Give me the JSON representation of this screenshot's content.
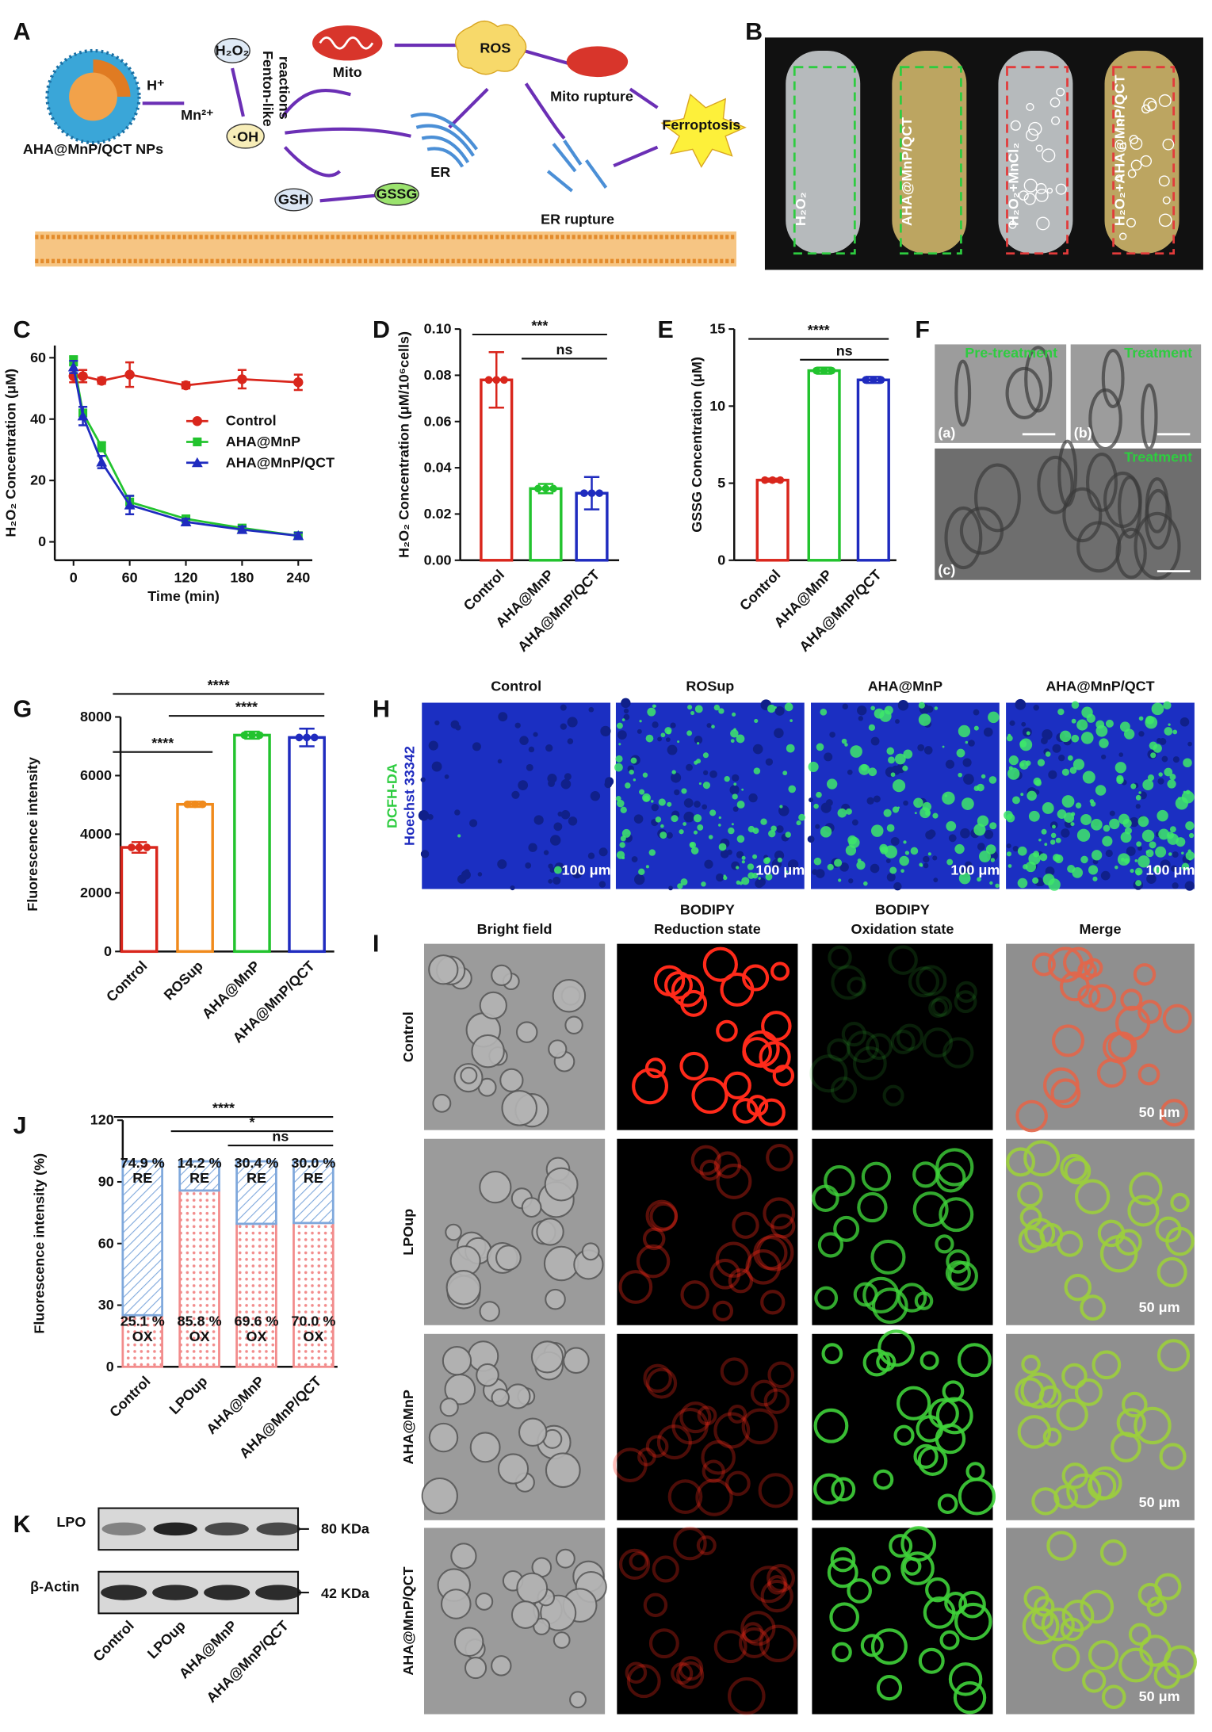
{
  "panel_labels": [
    "A",
    "B",
    "C",
    "D",
    "E",
    "F",
    "G",
    "H",
    "I",
    "J",
    "K"
  ],
  "diagram": {
    "nanoparticle": "AHA@MnP/QCT NPs",
    "proton": "H⁺",
    "manganese": "Mn²⁺",
    "peroxide": "H₂O₂",
    "reaction": [
      "Fenton-like",
      "reactions"
    ],
    "hydroxyl": "·OH",
    "mito": "Mito",
    "ros": "ROS",
    "mito_rupture": "Mito rupture",
    "er": "ER",
    "er_rupture": "ER rupture",
    "ferroptosis": "Ferroptosis",
    "gsh": "GSH",
    "gssg": "GSSG"
  },
  "tubes": [
    "H₂O₂",
    "AHA@MnP/QCT",
    "H₂O₂+MnCl₂",
    "H₂O₂+AHA@MnP/QCT"
  ],
  "tem": {
    "labels": [
      "Pre-treatment",
      "Treatment",
      "Treatment"
    ],
    "subpanels": [
      "(a)",
      "(b)",
      "(c)"
    ]
  },
  "ros_imaging": {
    "columns": [
      "Control",
      "ROSup",
      "AHA@MnP",
      "AHA@MnP/QCT"
    ],
    "stains": [
      "DCFH-DA",
      "Hoechst 33342"
    ],
    "scale": "100 μm"
  },
  "bodipy": {
    "columns": [
      [
        "Bright field"
      ],
      [
        "BODIPY",
        "Reduction state"
      ],
      [
        "BODIPY",
        "Oxidation state"
      ],
      [
        "Merge"
      ]
    ],
    "rows": [
      "Control",
      "LPOup",
      "AHA@MnP",
      "AHA@MnP/QCT"
    ],
    "scale": "50 μm"
  },
  "blot": {
    "proteins": [
      "LPO",
      "β-Actin"
    ],
    "sizes": [
      "80 KDa",
      "42 KDa"
    ],
    "lanes": [
      "Control",
      "LPOup",
      "AHA@MnP",
      "AHA@MnP/QCT"
    ]
  },
  "chart_data": [
    {
      "type": "line",
      "x_label": "Time (min)",
      "y_label": "H₂O₂ Concentration (μM)",
      "x": [
        0,
        10,
        30,
        60,
        120,
        180,
        240
      ],
      "xlim": [
        -20,
        255
      ],
      "xticks": [
        0,
        60,
        120,
        180,
        240
      ],
      "ylim": [
        -6,
        64
      ],
      "yticks": [
        0,
        20,
        40,
        60
      ],
      "legend": "right",
      "series": [
        {
          "name": "Control",
          "color": "#d9261c",
          "marker": "circle",
          "values": [
            54,
            54,
            52.5,
            54.5,
            51,
            53,
            52
          ],
          "errors": [
            2,
            2,
            1,
            4,
            1,
            3,
            2.5
          ]
        },
        {
          "name": "AHA@MnP",
          "color": "#22c32e",
          "marker": "square",
          "values": [
            59,
            42,
            31,
            13,
            7.5,
            4.5,
            2
          ],
          "errors": [
            1.5,
            2,
            1.5,
            2,
            1,
            1,
            1
          ]
        },
        {
          "name": "AHA@MnP/QCT",
          "color": "#1f2bbf",
          "marker": "triangle",
          "values": [
            57,
            41,
            26,
            12,
            6.5,
            4,
            2
          ],
          "errors": [
            2,
            3,
            2,
            3,
            1,
            1,
            1
          ]
        }
      ]
    },
    {
      "type": "bar",
      "y_label": "H₂O₂ Concentration (μM/10⁶cells)",
      "categories": [
        "Control",
        "AHA@MnP",
        "AHA@MnP/QCT"
      ],
      "values": [
        0.078,
        0.031,
        0.029
      ],
      "errors": [
        0.012,
        0.002,
        0.007
      ],
      "colors": [
        "#d9261c",
        "#22c32e",
        "#1f2bbf"
      ],
      "ylim": [
        0,
        0.1
      ],
      "yticks": [
        {
          "value": 0,
          "label": "0.00"
        },
        {
          "value": 0.02,
          "label": "0.02"
        },
        {
          "value": 0.04,
          "label": "0.04"
        },
        {
          "value": 0.06,
          "label": "0.06"
        },
        {
          "value": 0.08,
          "label": "0.08"
        },
        {
          "value": 0.1,
          "label": "0.10"
        }
      ],
      "significance": [
        "***",
        "ns"
      ]
    },
    {
      "type": "bar",
      "y_label": "GSSG Concentration (μM)",
      "categories": [
        "Control",
        "AHA@MnP",
        "AHA@MnP/QCT"
      ],
      "values": [
        5.2,
        12.3,
        11.7
      ],
      "errors": [
        0.1,
        0.2,
        0.2
      ],
      "colors": [
        "#d9261c",
        "#22c32e",
        "#1f2bbf"
      ],
      "ylim": [
        0,
        15
      ],
      "yticks": [
        0,
        5,
        10,
        15
      ],
      "significance": [
        "****",
        "ns"
      ]
    },
    {
      "type": "bar",
      "y_label": "Fluorescence intensity",
      "categories": [
        "Control",
        "ROSup",
        "AHA@MnP",
        "AHA@MnP/QCT"
      ],
      "values": [
        3550,
        5020,
        7380,
        7300
      ],
      "errors": [
        180,
        90,
        120,
        300
      ],
      "colors": [
        "#d9261c",
        "#f08a1c",
        "#22c32e",
        "#1f2bbf"
      ],
      "ylim": [
        0,
        8000
      ],
      "yticks": [
        0,
        2000,
        4000,
        6000,
        8000
      ],
      "significance": [
        "****",
        "****",
        "****"
      ]
    },
    {
      "type": "stacked_bar",
      "y_label": "Fluorescence intensity (%)",
      "categories": [
        "Control",
        "LPOup",
        "AHA@MnP",
        "AHA@MnP/QCT"
      ],
      "ylim": [
        0,
        120
      ],
      "yticks": [
        0,
        30,
        60,
        90,
        120
      ],
      "series": [
        {
          "name": "OX",
          "color": "#f28c8c",
          "values": [
            25.1,
            85.8,
            69.6,
            70.0
          ],
          "value_labels": [
            "25.1 %",
            "85.8 %",
            "69.6 %",
            "70.0 %"
          ]
        },
        {
          "name": "RE",
          "color": "#7fa8dc",
          "values": [
            74.9,
            14.2,
            30.4,
            30.0
          ],
          "value_labels": [
            "74.9 %",
            "14.2 %",
            "30.4 %",
            "30.0 %"
          ]
        }
      ],
      "significance": [
        "****",
        "*",
        "ns"
      ]
    }
  ]
}
